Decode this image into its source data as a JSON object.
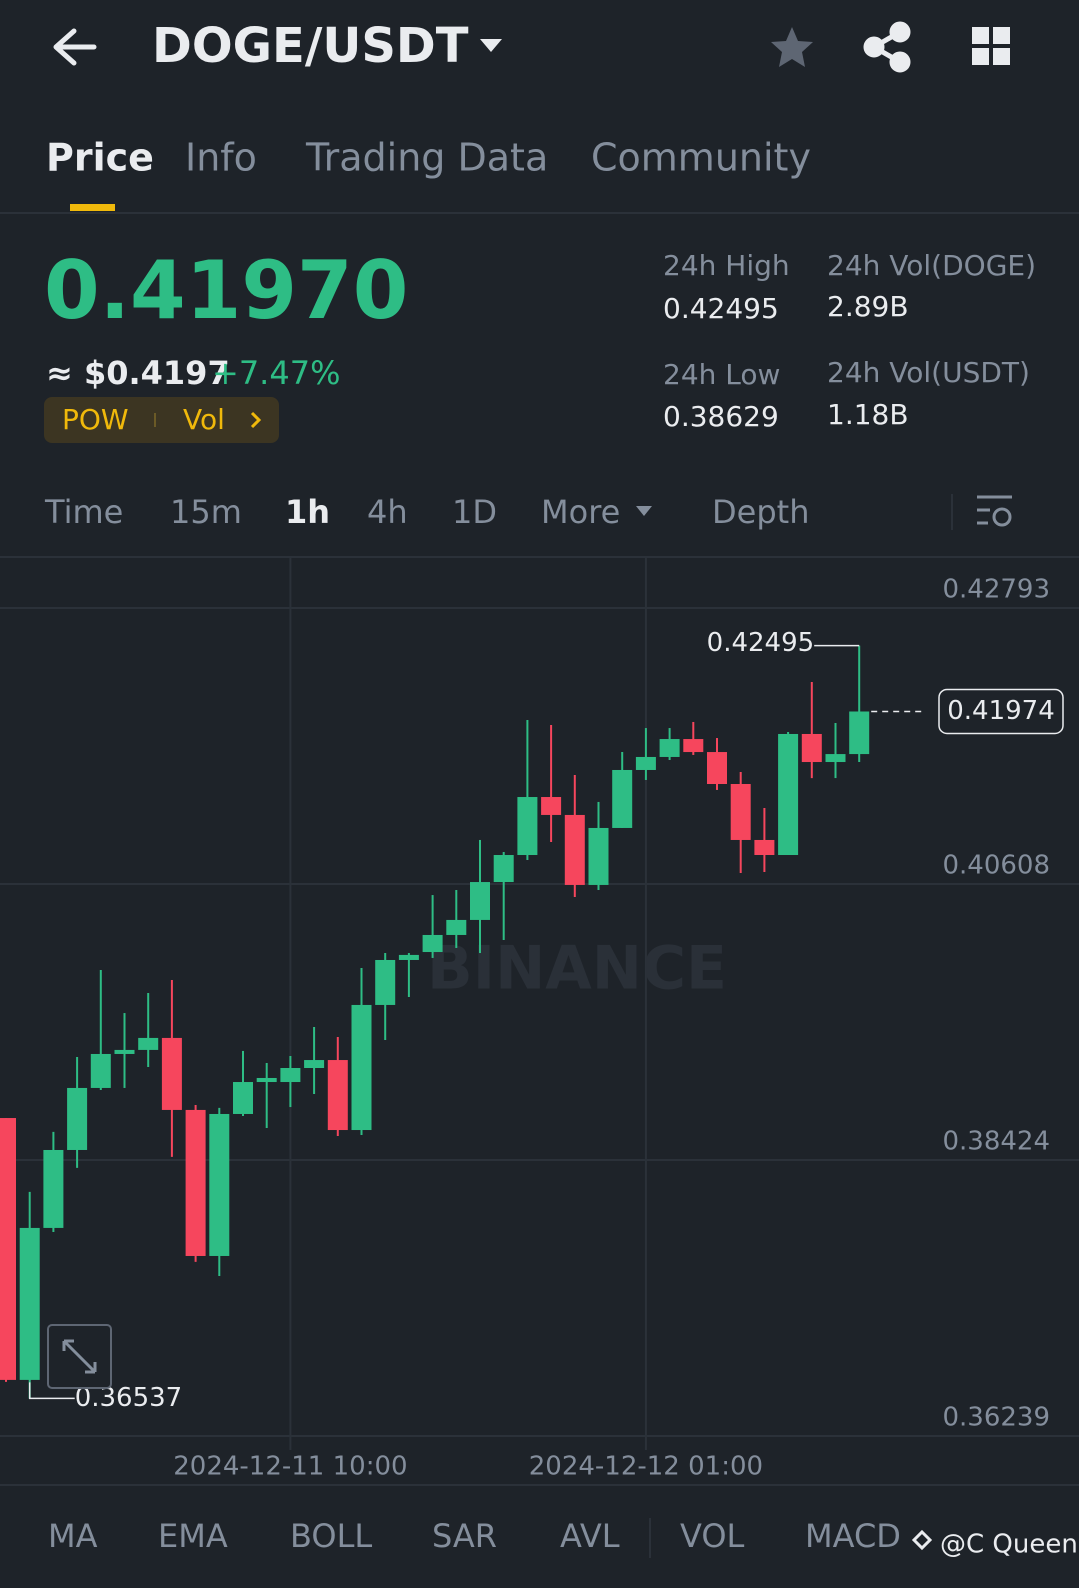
{
  "header": {
    "pair": "DOGE/USDT"
  },
  "tabs": [
    "Price",
    "Info",
    "Trading Data",
    "Community"
  ],
  "ticker": {
    "last": "0.41970",
    "usd": "≈ $0.4197",
    "change": "+7.47%",
    "badges": [
      "POW",
      "Vol"
    ]
  },
  "stats": [
    {
      "label": "24h High",
      "value": "0.42495"
    },
    {
      "label": "24h Vol(DOGE)",
      "value": "2.89B"
    },
    {
      "label": "24h Low",
      "value": "0.38629"
    },
    {
      "label": "24h Vol(USDT)",
      "value": "1.18B"
    }
  ],
  "intervals": [
    "Time",
    "15m",
    "1h",
    "4h",
    "1D",
    "More",
    "Depth"
  ],
  "watermark": "BINANCE",
  "chart_data": {
    "type": "candlestick",
    "categories": [
      null,
      null,
      null,
      null,
      null,
      null,
      null,
      null,
      null,
      null,
      null,
      null,
      "2024-12-11 10:00",
      null,
      null,
      null,
      null,
      null,
      null,
      null,
      null,
      null,
      null,
      null,
      null,
      null,
      null,
      "2024-12-12 01:00",
      null,
      null,
      null,
      null,
      null,
      null,
      null,
      null,
      null
    ],
    "open": [
      0.38756,
      0.36683,
      0.37886,
      0.38503,
      0.38994,
      0.39263,
      0.39295,
      0.3939,
      0.3882,
      0.37664,
      0.38788,
      0.39041,
      0.39041,
      0.39152,
      0.39215,
      0.38661,
      0.39651,
      0.40007,
      0.4007,
      0.40205,
      0.40324,
      0.40624,
      0.40838,
      0.41297,
      0.41155,
      0.40601,
      0.41052,
      0.41511,
      0.41614,
      0.41756,
      0.41653,
      0.414,
      0.40957,
      0.40838,
      0.41796,
      0.41574,
      0.41637
    ],
    "high": [
      0.38756,
      0.38171,
      0.38646,
      0.39239,
      0.39928,
      0.39587,
      0.39746,
      0.39849,
      0.38859,
      0.38836,
      0.39287,
      0.39192,
      0.39247,
      0.39477,
      0.39397,
      0.39944,
      0.40062,
      0.40062,
      0.40521,
      0.40561,
      0.40957,
      0.40862,
      0.41907,
      0.41867,
      0.41471,
      0.41258,
      0.41653,
      0.41843,
      0.41843,
      0.41891,
      0.41764,
      0.41495,
      0.4121,
      0.41812,
      0.42207,
      0.41883,
      0.42495
    ],
    "low": [
      0.36667,
      0.36537,
      0.37854,
      0.38361,
      0.38978,
      0.38994,
      0.3916,
      0.38448,
      0.37617,
      0.37506,
      0.38772,
      0.38677,
      0.38843,
      0.38946,
      0.38614,
      0.38622,
      0.39374,
      0.39714,
      0.40023,
      0.40102,
      0.40062,
      0.40165,
      0.40798,
      0.40941,
      0.40506,
      0.40561,
      0.41052,
      0.41432,
      0.4159,
      0.4163,
      0.41353,
      0.40696,
      0.40703,
      0.40838,
      0.41447,
      0.41447,
      0.41574
    ],
    "close": [
      0.36683,
      0.37886,
      0.38503,
      0.38994,
      0.39263,
      0.39295,
      0.3939,
      0.3882,
      0.37664,
      0.38788,
      0.39041,
      0.39073,
      0.39152,
      0.39215,
      0.38661,
      0.39651,
      0.40007,
      0.40047,
      0.40205,
      0.40324,
      0.40624,
      0.40838,
      0.41297,
      0.41155,
      0.40601,
      0.41052,
      0.41511,
      0.41614,
      0.41756,
      0.41653,
      0.414,
      0.40957,
      0.40838,
      0.41796,
      0.41574,
      0.41637,
      0.41974
    ],
    "up_color": "#2ebd85",
    "down_color": "#f6465d",
    "ylim": [
      0.36239,
      0.43189
    ],
    "yticks": [
      0.36239,
      0.38424,
      0.40608,
      0.42793
    ],
    "grid": true
  },
  "indicators": [
    "MA",
    "EMA",
    "BOLL",
    "SAR",
    "AVL",
    "VOL",
    "MACD"
  ],
  "credit": "@C Queen"
}
